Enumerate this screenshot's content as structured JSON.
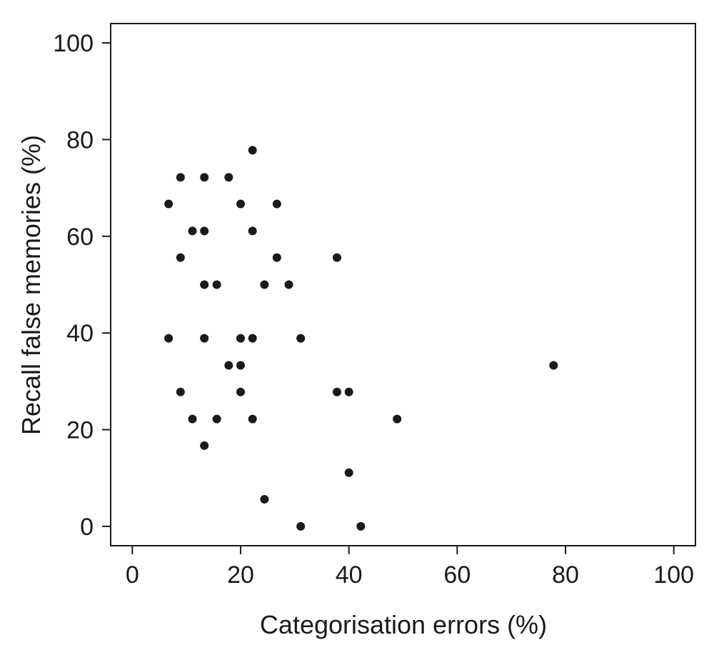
{
  "chart_data": {
    "type": "scatter",
    "xlabel": "Categorisation errors (%)",
    "ylabel": "Recall false memories (%)",
    "xlim": [
      -4,
      104
    ],
    "ylim": [
      -4,
      104
    ],
    "xticks": [
      0,
      20,
      40,
      60,
      80,
      100
    ],
    "yticks": [
      0,
      20,
      40,
      60,
      80,
      100
    ],
    "xtick_labels": [
      "0",
      "20",
      "40",
      "60",
      "80",
      "100"
    ],
    "ytick_labels": [
      "0",
      "20",
      "40",
      "60",
      "80",
      "100"
    ],
    "grid": false,
    "marker_color": "#1a1a1a",
    "series": [
      {
        "points": [
          {
            "x": 22.2,
            "y": 77.8
          },
          {
            "x": 8.9,
            "y": 72.2
          },
          {
            "x": 13.3,
            "y": 72.2
          },
          {
            "x": 17.8,
            "y": 72.2
          },
          {
            "x": 6.7,
            "y": 66.7
          },
          {
            "x": 20.0,
            "y": 66.7
          },
          {
            "x": 26.7,
            "y": 66.7
          },
          {
            "x": 11.1,
            "y": 61.1
          },
          {
            "x": 13.3,
            "y": 61.1
          },
          {
            "x": 22.2,
            "y": 61.1
          },
          {
            "x": 8.9,
            "y": 55.6
          },
          {
            "x": 26.7,
            "y": 55.6
          },
          {
            "x": 37.8,
            "y": 55.6
          },
          {
            "x": 13.3,
            "y": 50.0
          },
          {
            "x": 15.6,
            "y": 50.0
          },
          {
            "x": 24.4,
            "y": 50.0
          },
          {
            "x": 28.9,
            "y": 50.0
          },
          {
            "x": 6.7,
            "y": 38.9
          },
          {
            "x": 13.3,
            "y": 38.9
          },
          {
            "x": 20.0,
            "y": 38.9
          },
          {
            "x": 22.2,
            "y": 38.9
          },
          {
            "x": 31.1,
            "y": 38.9
          },
          {
            "x": 17.8,
            "y": 33.3
          },
          {
            "x": 20.0,
            "y": 33.3
          },
          {
            "x": 77.8,
            "y": 33.3
          },
          {
            "x": 8.9,
            "y": 27.8
          },
          {
            "x": 20.0,
            "y": 27.8
          },
          {
            "x": 37.8,
            "y": 27.8
          },
          {
            "x": 40.0,
            "y": 27.8
          },
          {
            "x": 11.1,
            "y": 22.2
          },
          {
            "x": 15.6,
            "y": 22.2
          },
          {
            "x": 22.2,
            "y": 22.2
          },
          {
            "x": 48.9,
            "y": 22.2
          },
          {
            "x": 13.3,
            "y": 16.7
          },
          {
            "x": 40.0,
            "y": 11.1
          },
          {
            "x": 24.4,
            "y": 5.6
          },
          {
            "x": 31.1,
            "y": 0.0
          },
          {
            "x": 42.2,
            "y": 0.0
          }
        ]
      }
    ]
  }
}
